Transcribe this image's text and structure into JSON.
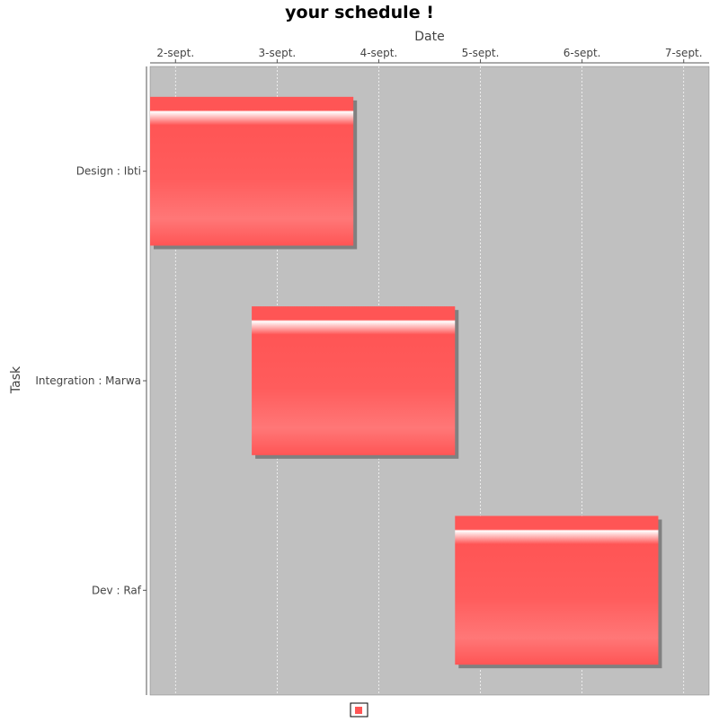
{
  "chart_data": {
    "type": "gantt",
    "title": "your schedule !",
    "xlabel": "Date",
    "ylabel": "Task",
    "x_ticks": [
      "2-sept.",
      "3-sept.",
      "4-sept.",
      "5-sept.",
      "6-sept.",
      "7-sept."
    ],
    "x_axis_position": "top",
    "xlim": [
      "1-sept. 18:00",
      "7-sept. 06:00"
    ],
    "categories": [
      "Design : Ibti",
      "Integration : Marwa",
      "Dev : Raf"
    ],
    "tasks": [
      {
        "label": "Design : Ibti",
        "start": "1-sept. 18:00",
        "end": "3-sept. 18:00"
      },
      {
        "label": "Integration : Marwa",
        "start": "2-sept. 18:00",
        "end": "4-sept. 18:00"
      },
      {
        "label": "Dev : Raf",
        "start": "4-sept. 18:00",
        "end": "6-sept. 18:00"
      }
    ],
    "grid": true,
    "legend": {
      "position": "bottom",
      "entries": [
        ""
      ]
    },
    "colors": {
      "bar": "#ff5555",
      "plot_background": "#c0c0c0",
      "gridline": "#ffffff",
      "shadow": "#808080"
    }
  }
}
